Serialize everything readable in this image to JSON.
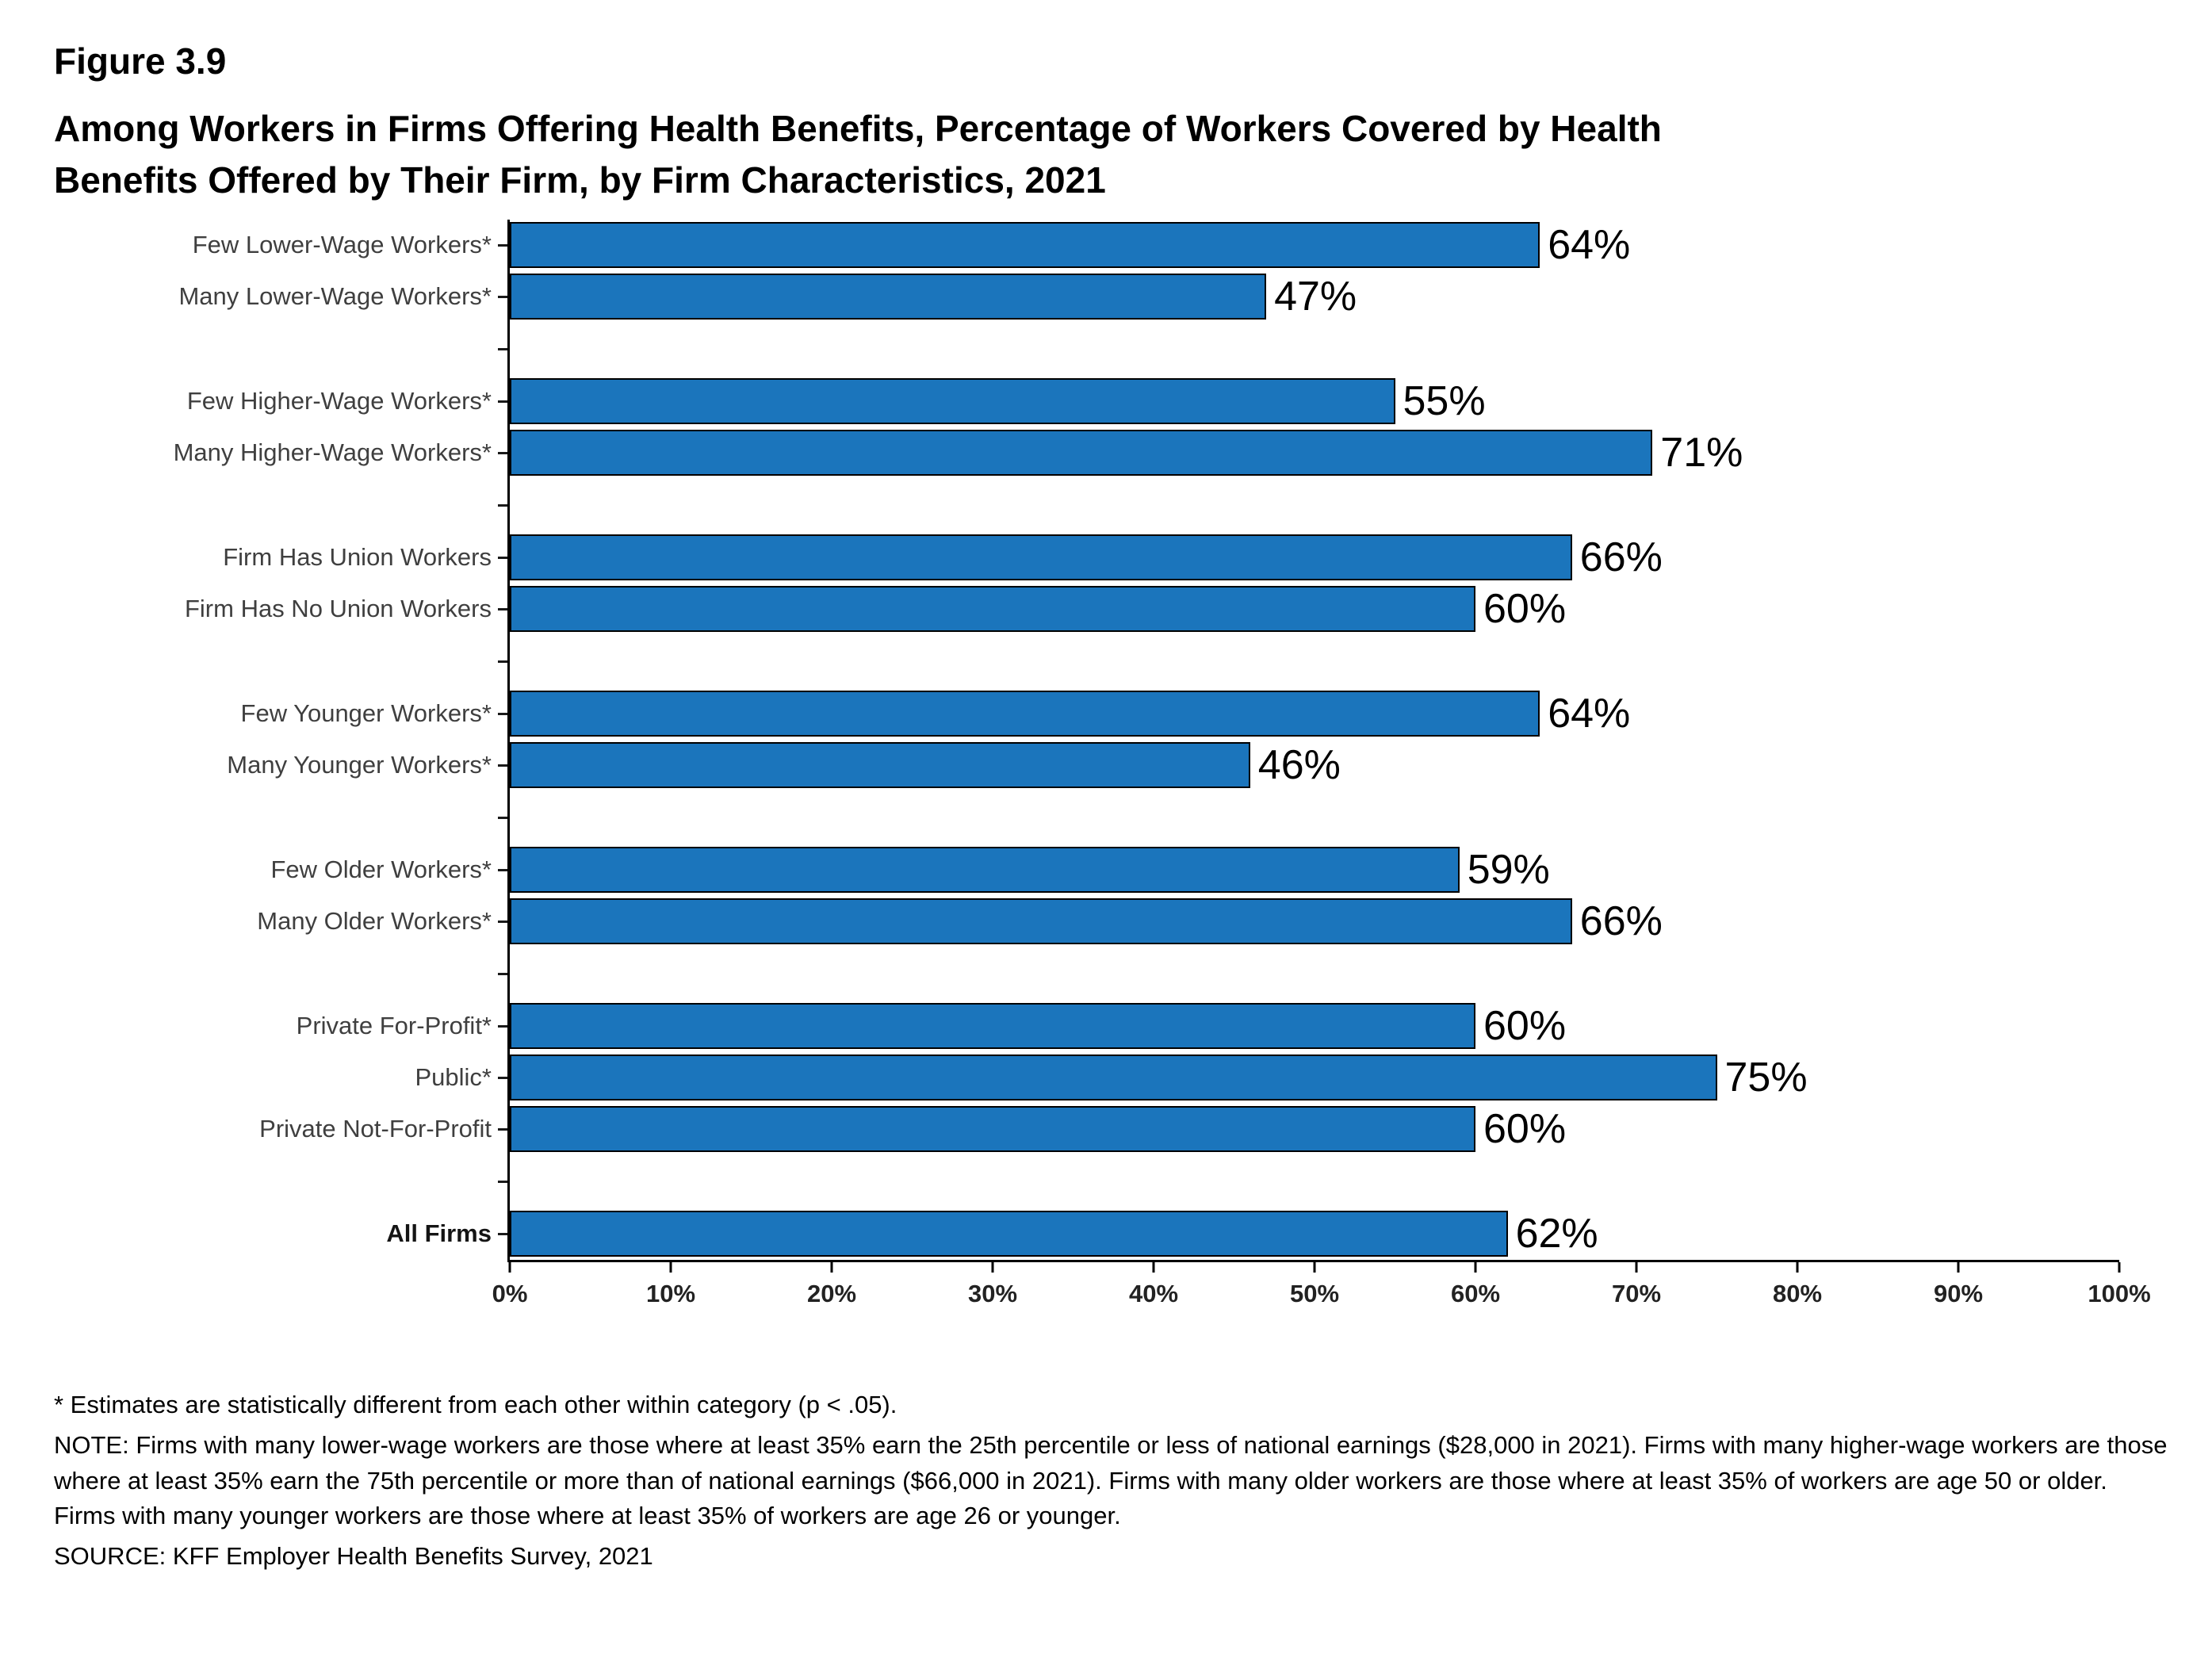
{
  "header": {
    "figure_label": "Figure 3.9",
    "title_line1": "Among Workers in Firms Offering Health Benefits, Percentage of Workers Covered by Health",
    "title_line2": "Benefits Offered by Their Firm, by Firm Characteristics, 2021"
  },
  "chart_data": {
    "type": "bar",
    "orientation": "horizontal",
    "title": "Among Workers in Firms Offering Health Benefits, Percentage of Workers Covered by Health Benefits Offered by Their Firm, by Firm Characteristics, 2021",
    "xlabel": "",
    "ylabel": "",
    "xlim": [
      0,
      100
    ],
    "grid": false,
    "bar_color": "#1B75BC",
    "x_ticks": [
      "0%",
      "10%",
      "20%",
      "30%",
      "40%",
      "50%",
      "60%",
      "70%",
      "80%",
      "90%",
      "100%"
    ],
    "rows": [
      {
        "label": "Few Lower-Wage Workers*",
        "value": 64
      },
      {
        "label": "Many Lower-Wage Workers*",
        "value": 47
      },
      {
        "spacer": true
      },
      {
        "label": "Few Higher-Wage Workers*",
        "value": 55
      },
      {
        "label": "Many Higher-Wage Workers*",
        "value": 71
      },
      {
        "spacer": true
      },
      {
        "label": "Firm Has Union Workers",
        "value": 66
      },
      {
        "label": "Firm Has No Union Workers",
        "value": 60
      },
      {
        "spacer": true
      },
      {
        "label": "Few Younger Workers*",
        "value": 64
      },
      {
        "label": "Many Younger Workers*",
        "value": 46
      },
      {
        "spacer": true
      },
      {
        "label": "Few Older Workers*",
        "value": 59
      },
      {
        "label": "Many Older Workers*",
        "value": 66
      },
      {
        "spacer": true
      },
      {
        "label": "Private For-Profit*",
        "value": 60
      },
      {
        "label": "Public*",
        "value": 75
      },
      {
        "label": "Private Not-For-Profit",
        "value": 60
      },
      {
        "spacer": true
      },
      {
        "label": "All Firms",
        "value": 62,
        "bold": true
      }
    ]
  },
  "footnotes": {
    "stat": "* Estimates are statistically different from each other within category (p < .05).",
    "note": "NOTE: Firms with many lower-wage workers are those where at least 35% earn the 25th percentile or less of national earnings ($28,000 in 2021). Firms with many higher-wage workers are those where at least 35% earn the 75th percentile or more than of national earnings ($66,000 in 2021). Firms with many older workers are those where at least 35% of workers are age 50 or older. Firms with many younger workers are those where at least 35% of workers are age 26 or younger.",
    "source": "SOURCE: KFF Employer Health Benefits Survey, 2021"
  }
}
